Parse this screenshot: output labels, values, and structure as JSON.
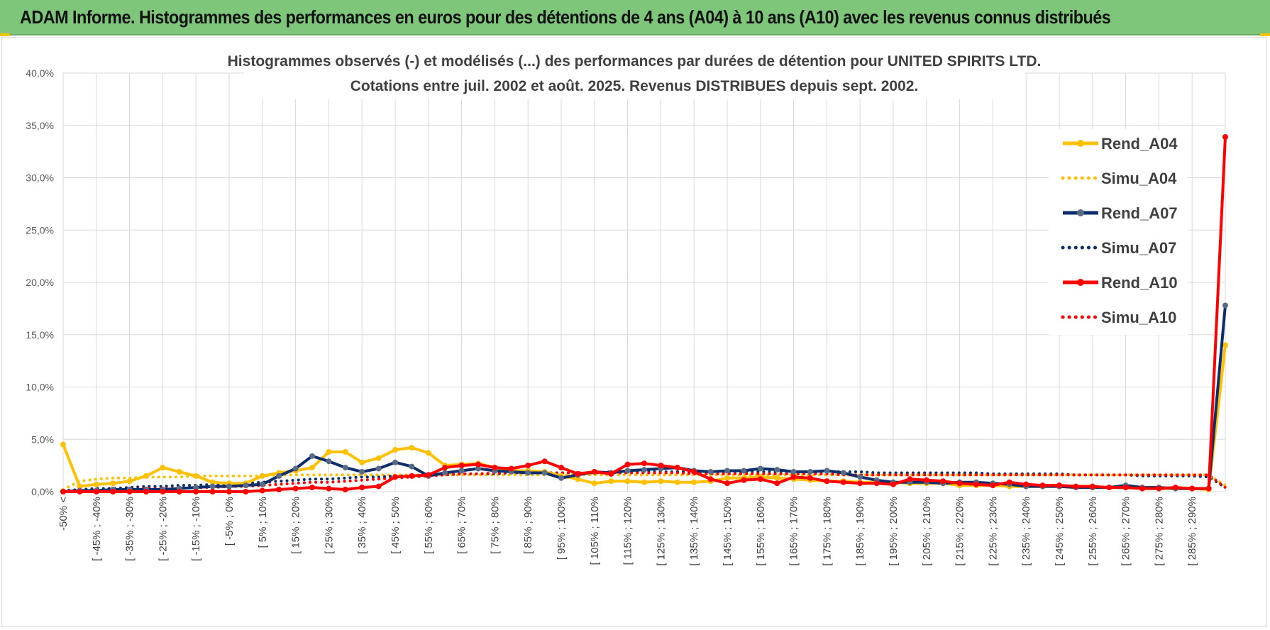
{
  "banner": {
    "title": "ADAM Informe. Histogrammes des performances en euros pour des détentions de 4 ans (A04) à 10 ans (A10) avec les revenus connus distribués"
  },
  "colors": {
    "banner_bg": "#7dc67a",
    "A04": "#ffc000",
    "A07": "#0d2d6b",
    "A07_marker": "#5a6b85",
    "A10": "#ff0000",
    "grid": "#d9d9d9"
  },
  "chart_data": {
    "type": "line",
    "title_line1": "Histogrammes observés (-) et modélisés (...) des performances par durées de détention pour UNITED SPIRITS LTD.",
    "title_line2": "Cotations entre juil. 2002 et août. 2025. Revenus DISTRIBUES depuis sept. 2002.",
    "ylim": [
      0,
      40
    ],
    "y_ticks": [
      "0,0%",
      "5,0%",
      "10,0%",
      "15,0%",
      "20,0%",
      "25,0%",
      "30,0%",
      "35,0%",
      "40,0%"
    ],
    "y_tick_values": [
      0,
      5,
      10,
      15,
      20,
      25,
      30,
      35,
      40
    ],
    "x_tick_labels": [
      "-50% <",
      "[ -45% ; -40%",
      "[ -35% ; -30%",
      "[ -25% ; -20%",
      "[ -15% ; -10%",
      "[ -5% ; 0%",
      "[ 5% ; 10%",
      "[ 15% ; 20%",
      "[ 25% ; 30%",
      "[ 35% ; 40%",
      "[ 45% ; 50%",
      "[ 55% ; 60%",
      "[ 65% ; 70%",
      "[ 75% ; 80%",
      "[ 85% ; 90%",
      "[ 95% ; 100%",
      "[ 105% ; 110%",
      "[ 115% ; 120%",
      "[ 125% ; 130%",
      "[ 135% ; 140%",
      "[ 145% ; 150%",
      "[ 155% ; 160%",
      "[ 165% ; 170%",
      "[ 175% ; 180%",
      "[ 185% ; 190%",
      "[ 195% ; 200%",
      "[ 205% ; 210%",
      "[ 215% ; 220%",
      "[ 225% ; 230%",
      "[ 235% ; 240%",
      "[ 245% ; 250%",
      "[ 255% ; 260%",
      "[ 265% ; 270%",
      "[ 275% ; 280%",
      "[ 285% ; 290%"
    ],
    "n_points": 71,
    "legend_position": "right",
    "series": [
      {
        "name": "Rend_A04",
        "color_key": "A04",
        "style": "solid",
        "markers": true,
        "values": [
          4.5,
          0.5,
          0.7,
          0.8,
          1.0,
          1.5,
          2.3,
          1.9,
          1.5,
          0.9,
          0.8,
          0.8,
          1.5,
          1.8,
          2.0,
          2.3,
          3.8,
          3.8,
          2.8,
          3.2,
          4.0,
          4.2,
          3.7,
          2.5,
          2.6,
          2.7,
          2.3,
          2.0,
          2.0,
          1.9,
          1.5,
          1.2,
          0.8,
          1.0,
          1.0,
          0.9,
          1.0,
          0.9,
          0.9,
          1.0,
          1.3,
          1.3,
          1.4,
          1.3,
          1.2,
          1.1,
          1.0,
          1.0,
          0.9,
          0.9,
          0.9,
          0.8,
          0.8,
          0.8,
          0.6,
          0.6,
          0.6,
          0.5,
          0.5,
          0.5,
          0.5,
          0.4,
          0.4,
          0.4,
          0.4,
          0.3,
          0.3,
          0.3,
          0.3,
          0.2,
          14.0
        ]
      },
      {
        "name": "Simu_A04",
        "color_key": "A04",
        "style": "dotted",
        "markers": false,
        "values": [
          0.2,
          1.0,
          1.2,
          1.3,
          1.3,
          1.4,
          1.4,
          1.4,
          1.5,
          1.5,
          1.5,
          1.5,
          1.5,
          1.6,
          1.6,
          1.6,
          1.6,
          1.6,
          1.6,
          1.6,
          1.6,
          1.6,
          1.6,
          1.6,
          1.6,
          1.6,
          1.6,
          1.6,
          1.6,
          1.6,
          1.6,
          1.6,
          1.6,
          1.6,
          1.6,
          1.6,
          1.6,
          1.6,
          1.6,
          1.6,
          1.6,
          1.6,
          1.6,
          1.6,
          1.6,
          1.6,
          1.6,
          1.6,
          1.6,
          1.6,
          1.6,
          1.6,
          1.6,
          1.6,
          1.6,
          1.6,
          1.6,
          1.6,
          1.6,
          1.6,
          1.6,
          1.6,
          1.6,
          1.6,
          1.6,
          1.6,
          1.6,
          1.6,
          1.6,
          1.6,
          0.6
        ]
      },
      {
        "name": "Rend_A07",
        "color_key": "A07",
        "style": "solid",
        "markers": true,
        "values": [
          0.0,
          0.1,
          0.1,
          0.2,
          0.2,
          0.2,
          0.2,
          0.3,
          0.4,
          0.5,
          0.5,
          0.6,
          0.7,
          1.5,
          2.2,
          3.4,
          2.9,
          2.3,
          1.9,
          2.2,
          2.8,
          2.4,
          1.5,
          1.8,
          2.0,
          2.2,
          2.0,
          1.9,
          1.8,
          1.8,
          1.3,
          1.6,
          1.9,
          1.8,
          2.0,
          2.1,
          2.2,
          2.3,
          2.0,
          1.9,
          2.0,
          2.0,
          2.2,
          2.1,
          1.9,
          1.9,
          2.0,
          1.8,
          1.4,
          1.1,
          0.9,
          0.9,
          0.9,
          0.8,
          0.9,
          0.9,
          0.8,
          0.7,
          0.5,
          0.5,
          0.5,
          0.4,
          0.4,
          0.4,
          0.6,
          0.4,
          0.4,
          0.3,
          0.3,
          0.3,
          17.8
        ]
      },
      {
        "name": "Simu_A07",
        "color_key": "A07",
        "style": "dotted",
        "markers": false,
        "values": [
          0.1,
          0.2,
          0.3,
          0.3,
          0.4,
          0.5,
          0.5,
          0.6,
          0.6,
          0.7,
          0.7,
          0.8,
          0.9,
          1.0,
          1.1,
          1.2,
          1.2,
          1.3,
          1.4,
          1.4,
          1.5,
          1.5,
          1.6,
          1.6,
          1.7,
          1.7,
          1.7,
          1.8,
          1.8,
          1.8,
          1.8,
          1.8,
          1.8,
          1.9,
          1.9,
          1.9,
          1.9,
          1.9,
          1.9,
          1.9,
          1.9,
          1.9,
          1.9,
          1.9,
          1.9,
          1.9,
          1.9,
          1.9,
          1.9,
          1.8,
          1.8,
          1.8,
          1.8,
          1.8,
          1.8,
          1.8,
          1.7,
          1.7,
          1.7,
          1.7,
          1.7,
          1.6,
          1.6,
          1.6,
          1.6,
          1.5,
          1.5,
          1.5,
          1.5,
          1.4,
          0.4
        ]
      },
      {
        "name": "Rend_A10",
        "color_key": "A10",
        "style": "solid",
        "markers": true,
        "values": [
          0.0,
          0.0,
          0.0,
          0.0,
          0.0,
          0.0,
          0.0,
          0.0,
          0.0,
          0.0,
          0.0,
          0.0,
          0.1,
          0.2,
          0.3,
          0.4,
          0.3,
          0.2,
          0.4,
          0.5,
          1.4,
          1.5,
          1.6,
          2.3,
          2.5,
          2.6,
          2.3,
          2.2,
          2.5,
          2.9,
          2.3,
          1.7,
          1.9,
          1.7,
          2.6,
          2.7,
          2.5,
          2.3,
          1.9,
          1.2,
          0.8,
          1.1,
          1.2,
          0.8,
          1.4,
          1.3,
          1.0,
          0.9,
          0.8,
          0.8,
          0.7,
          1.2,
          1.1,
          1.0,
          0.8,
          0.7,
          0.6,
          0.9,
          0.7,
          0.6,
          0.6,
          0.5,
          0.5,
          0.4,
          0.4,
          0.3,
          0.3,
          0.4,
          0.3,
          0.3,
          33.9
        ]
      },
      {
        "name": "Simu_A10",
        "color_key": "A10",
        "style": "dotted",
        "markers": false,
        "values": [
          0.1,
          0.1,
          0.1,
          0.2,
          0.2,
          0.3,
          0.3,
          0.3,
          0.4,
          0.4,
          0.5,
          0.5,
          0.6,
          0.7,
          0.8,
          0.9,
          0.9,
          1.0,
          1.1,
          1.2,
          1.3,
          1.4,
          1.5,
          1.6,
          1.7,
          1.7,
          1.8,
          1.8,
          1.8,
          1.8,
          1.8,
          1.8,
          1.8,
          1.8,
          1.8,
          1.8,
          1.8,
          1.8,
          1.7,
          1.7,
          1.7,
          1.7,
          1.7,
          1.7,
          1.7,
          1.7,
          1.7,
          1.6,
          1.6,
          1.6,
          1.6,
          1.6,
          1.6,
          1.6,
          1.6,
          1.6,
          1.6,
          1.6,
          1.6,
          1.6,
          1.6,
          1.6,
          1.6,
          1.6,
          1.6,
          1.6,
          1.6,
          1.6,
          1.6,
          1.6,
          0.4
        ]
      }
    ]
  }
}
